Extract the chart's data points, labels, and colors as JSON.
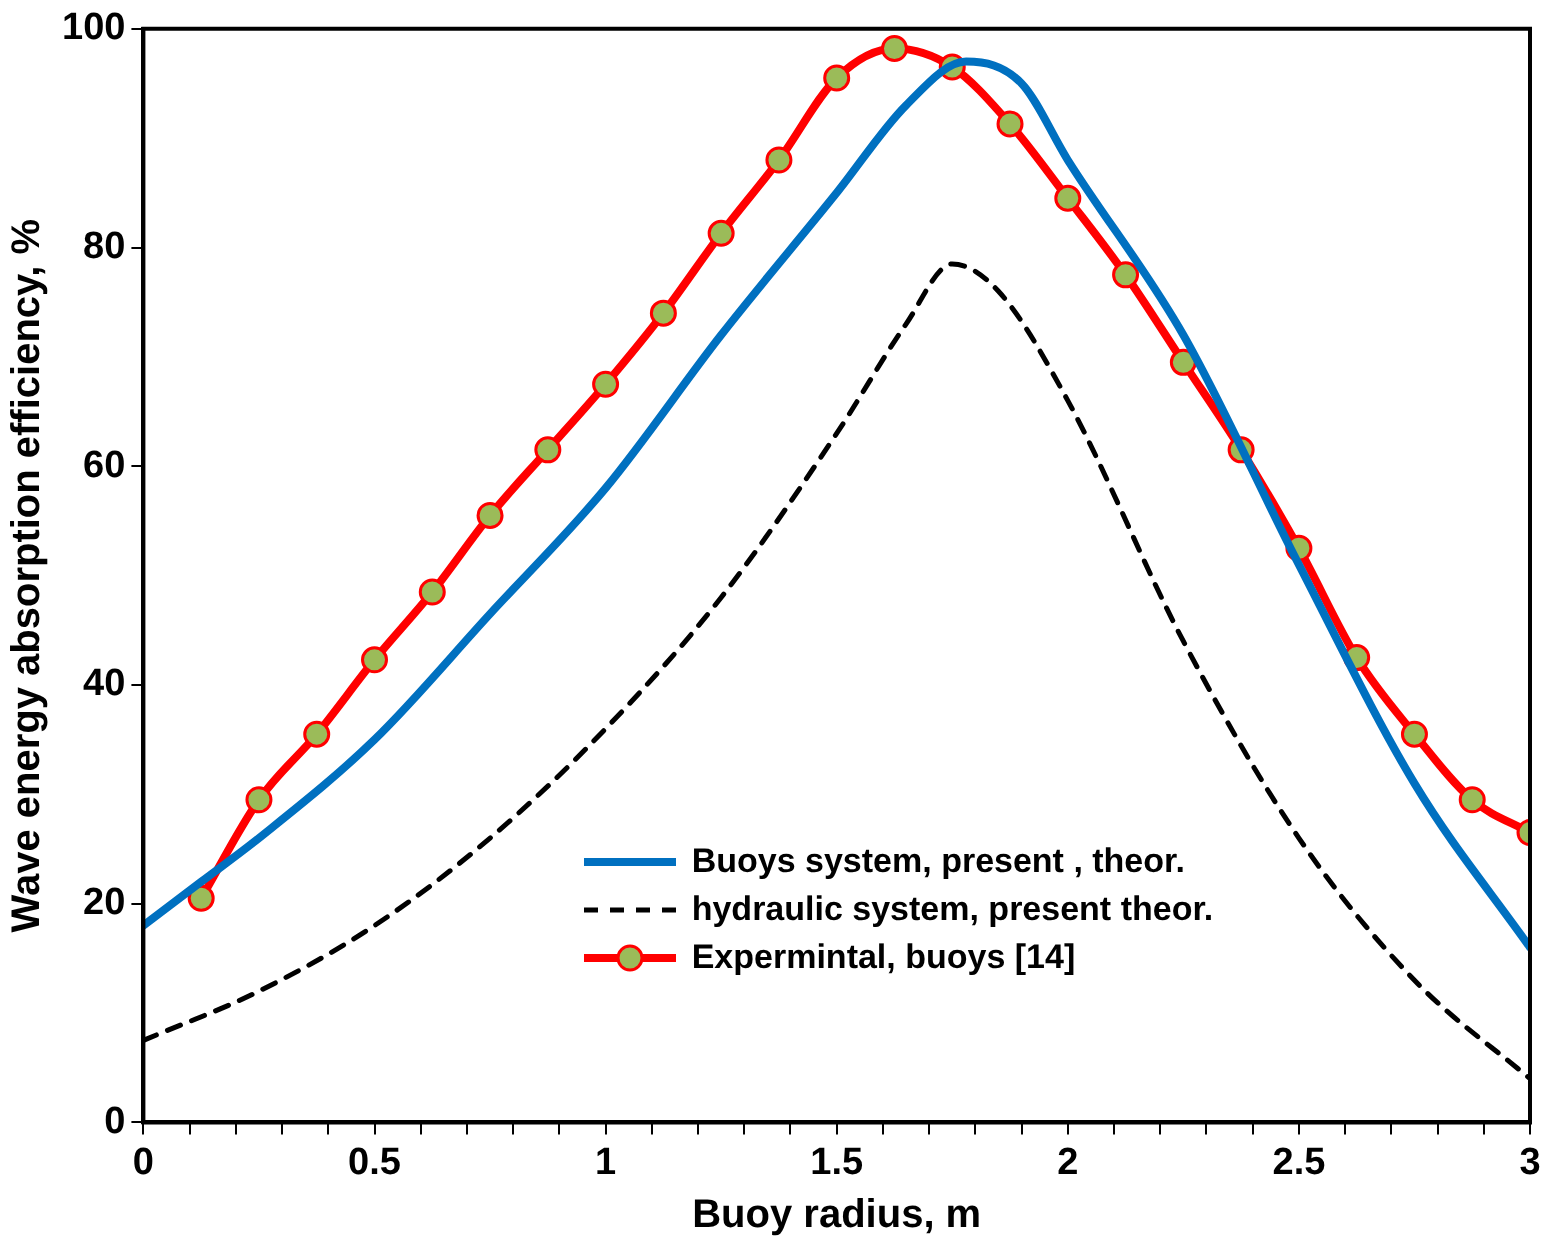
{
  "chart_data": {
    "type": "line",
    "xlabel": "Buoy radius, m",
    "ylabel": "Wave energy absorption efficiency, %",
    "xlim": [
      0,
      3
    ],
    "ylim": [
      0,
      100
    ],
    "xticks": [
      0,
      {
        "value": 0.1,
        "label": null
      },
      {
        "value": 0.2,
        "label": null
      },
      {
        "value": 0.3,
        "label": null
      },
      {
        "value": 0.4,
        "label": null
      },
      0.5,
      {
        "value": 0.6,
        "label": null
      },
      {
        "value": 0.7,
        "label": null
      },
      {
        "value": 0.8,
        "label": null
      },
      {
        "value": 0.9,
        "label": null
      },
      1,
      {
        "value": 1.1,
        "label": null
      },
      {
        "value": 1.2,
        "label": null
      },
      {
        "value": 1.3,
        "label": null
      },
      {
        "value": 1.4,
        "label": null
      },
      1.5,
      {
        "value": 1.6,
        "label": null
      },
      {
        "value": 1.7,
        "label": null
      },
      {
        "value": 1.8,
        "label": null
      },
      {
        "value": 1.9,
        "label": null
      },
      2,
      {
        "value": 2.1,
        "label": null
      },
      {
        "value": 2.2,
        "label": null
      },
      {
        "value": 2.3,
        "label": null
      },
      {
        "value": 2.4,
        "label": null
      },
      2.5,
      {
        "value": 2.6,
        "label": null
      },
      {
        "value": 2.7,
        "label": null
      },
      {
        "value": 2.8,
        "label": null
      },
      {
        "value": 2.9,
        "label": null
      },
      3
    ],
    "yticks": [
      0,
      20,
      40,
      60,
      80,
      100
    ],
    "grid": false,
    "legend": "bottom",
    "series": [
      {
        "name": "Buoys system, present , theor.",
        "color": "#0070c0",
        "marker": "none",
        "line_style": "solid",
        "x": [
          0,
          0.125,
          0.25,
          0.5,
          0.75,
          1,
          1.25,
          1.5,
          1.65,
          1.78,
          1.9,
          2,
          2.25,
          2.5,
          2.75,
          3
        ],
        "values": [
          18,
          22,
          26,
          35,
          46.5,
          58,
          72,
          85,
          93,
          97,
          95,
          88,
          72,
          51,
          31,
          16
        ]
      },
      {
        "name": "hydraulic system, present theor.",
        "color": "#000000",
        "marker": "none",
        "line_style": "dashed",
        "x": [
          0,
          0.25,
          0.5,
          0.75,
          1,
          1.25,
          1.5,
          1.65,
          1.75,
          1.85,
          2,
          2.25,
          2.5,
          2.75,
          3
        ],
        "values": [
          7.5,
          12,
          18,
          26,
          36,
          48,
          63,
          73,
          78.5,
          76,
          66,
          44,
          26,
          13,
          4
        ]
      },
      {
        "name": "Expermintal, buoys [14]",
        "color": "#ff0000",
        "marker": "circle",
        "line_style": "solid",
        "x": [
          0.125,
          0.25,
          0.375,
          0.5,
          0.625,
          0.75,
          0.875,
          1,
          1.125,
          1.25,
          1.375,
          1.5,
          1.625,
          1.75,
          1.875,
          2,
          2.125,
          2.25,
          2.375,
          2.5,
          2.625,
          2.75,
          2.875,
          3
        ],
        "values": [
          20.5,
          29.5,
          35.5,
          42.3,
          48.5,
          55.5,
          61.5,
          67.5,
          74,
          81.3,
          88,
          95.5,
          98.2,
          96.5,
          91.3,
          84.5,
          77.5,
          69.5,
          61.5,
          52.5,
          42.5,
          35.5,
          29.5,
          26.5
        ]
      }
    ]
  }
}
